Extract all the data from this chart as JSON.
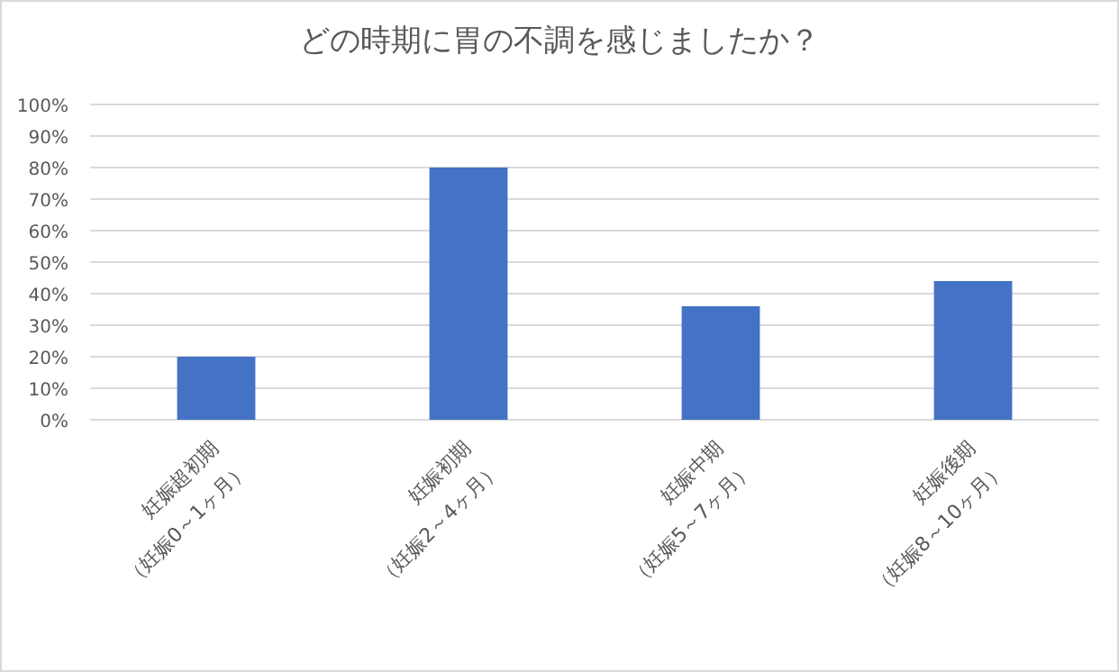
{
  "chart_data": {
    "type": "bar",
    "title": "どの時期に胃の不調を感じましたか？",
    "categories": [
      "妊娠超初期\n（妊娠0～1ヶ月）",
      "妊娠初期\n（妊娠2～4ヶ月）",
      "妊娠中期\n（妊娠5～7ヶ月）",
      "妊娠後期\n（妊娠8～10ヶ月）"
    ],
    "values": [
      20,
      80,
      36,
      44
    ],
    "color": "#4472c4",
    "ylim": [
      0,
      100
    ],
    "yticks": [
      {
        "value": 0,
        "label": "0%"
      },
      {
        "value": 10,
        "label": "10%"
      },
      {
        "value": 20,
        "label": "20%"
      },
      {
        "value": 30,
        "label": "30%"
      },
      {
        "value": 40,
        "label": "40%"
      },
      {
        "value": 50,
        "label": "50%"
      },
      {
        "value": 60,
        "label": "60%"
      },
      {
        "value": 70,
        "label": "70%"
      },
      {
        "value": 80,
        "label": "80%"
      },
      {
        "value": 90,
        "label": "90%"
      },
      {
        "value": 100,
        "label": "100%"
      }
    ],
    "grid": "y"
  }
}
